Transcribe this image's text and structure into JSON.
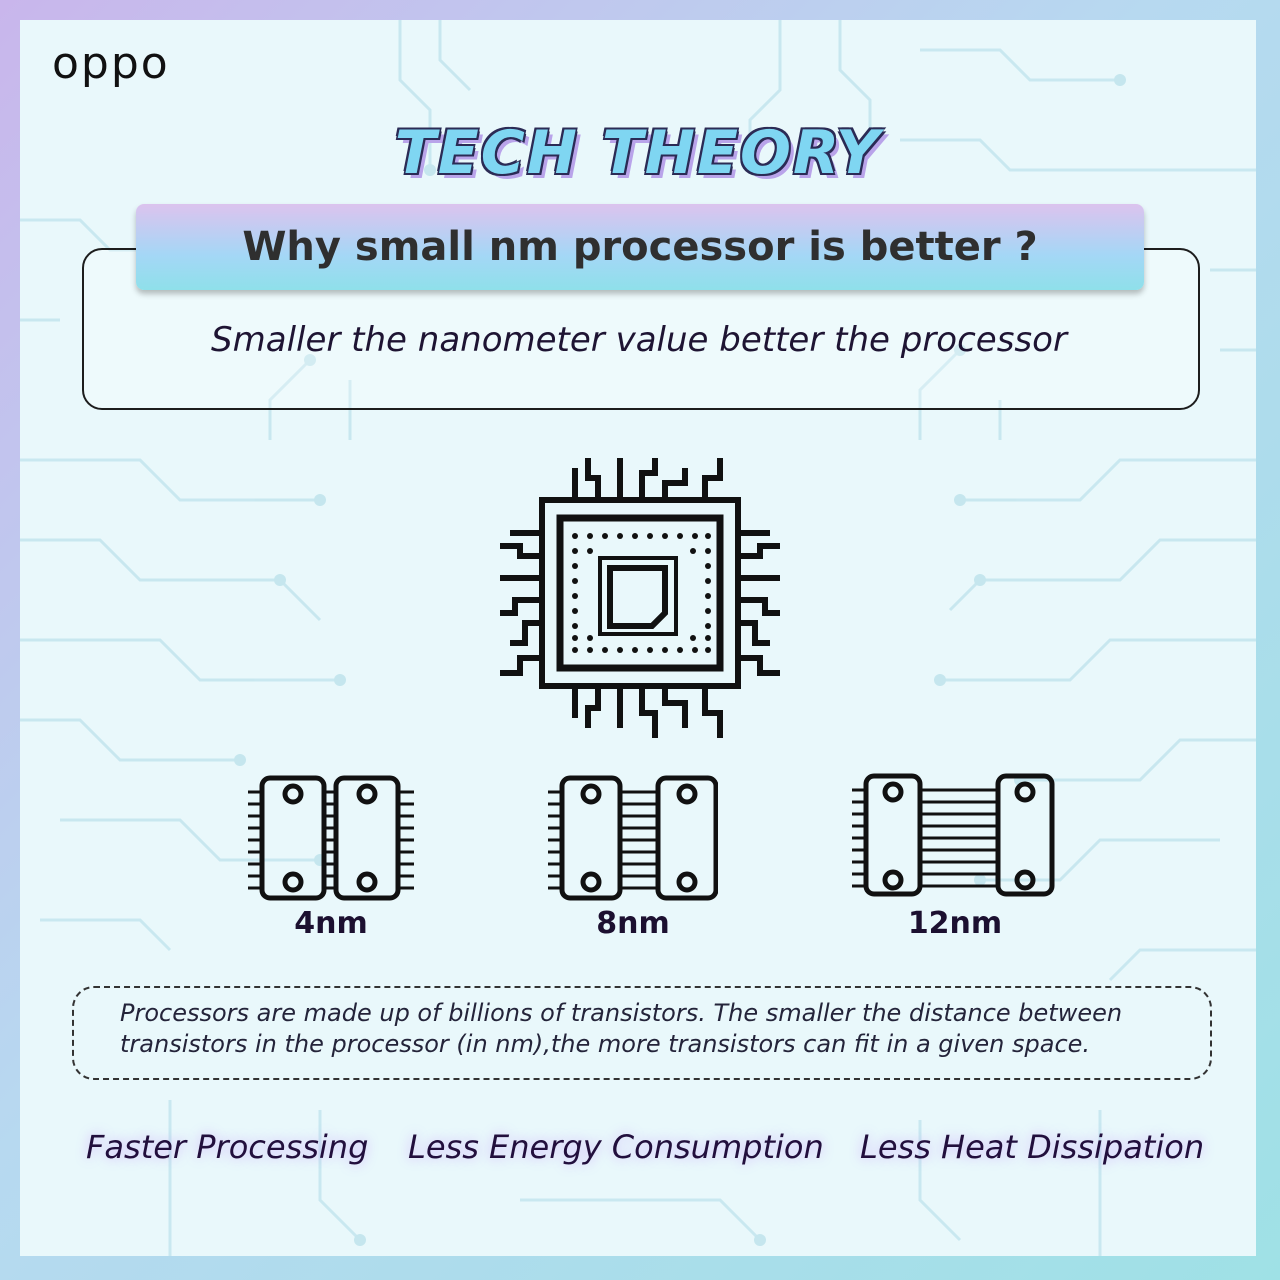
{
  "brand": {
    "logo_text": "oppo"
  },
  "header": {
    "title": "TECH THEORY"
  },
  "question": {
    "heading": "Why small nm processor is better ?",
    "answer": "Smaller the nanometer value better the processor"
  },
  "transistor_sizes": [
    {
      "label": "4nm"
    },
    {
      "label": "8nm"
    },
    {
      "label": "12nm"
    }
  ],
  "note": {
    "text": "Processors are made up of billions of transistors. The smaller the distance between transistors in the processor (in nm),the more transistors can fit in a given space."
  },
  "benefits": [
    {
      "label": "Faster Processing"
    },
    {
      "label": "Less Energy Consumption"
    },
    {
      "label": "Less Heat Dissipation"
    }
  ],
  "icons": {
    "chip": "processor-chip-icon",
    "transistor": "transistor-pair-icon"
  },
  "colors": {
    "title_fill": "#7fd6f2",
    "title_outline": "#2b2b55",
    "banner_top": "#dcc3ee",
    "banner_bottom": "#8fe0ea",
    "circuit_lines": "#c3e4ec"
  }
}
